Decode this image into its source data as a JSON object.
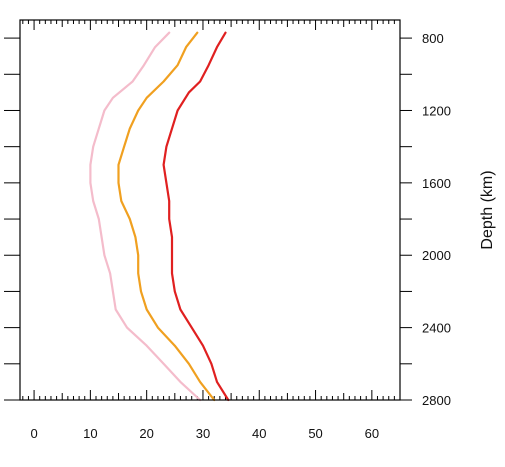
{
  "chart_data": {
    "type": "line",
    "xlim": [
      -2.5,
      65
    ],
    "x_ticks": [
      0,
      10,
      20,
      30,
      40,
      50,
      60
    ],
    "x_tick_labels": [
      "0",
      "10",
      "20",
      "30",
      "40",
      "50",
      "60"
    ],
    "ylim": [
      700,
      2800
    ],
    "y_ticks": [
      800,
      1200,
      1600,
      2000,
      2400,
      2800
    ],
    "y_tick_labels": [
      "800",
      "1200",
      "1600",
      "2000",
      "2400",
      "2800"
    ],
    "ylabel": "Depth (km)",
    "grid": false,
    "legend": "none",
    "series": [
      {
        "color": "#f4bccb",
        "depth": [
          770,
          850,
          950,
          1040,
          1130,
          1200,
          1300,
          1400,
          1500,
          1600,
          1700,
          1800,
          1900,
          2000,
          2100,
          2200,
          2300,
          2400,
          2500,
          2600,
          2700,
          2800
        ],
        "value": [
          24.0,
          21.5,
          19.5,
          17.5,
          14.0,
          12.5,
          11.5,
          10.5,
          10.0,
          10.0,
          10.5,
          11.5,
          12.0,
          12.5,
          13.5,
          14.0,
          14.5,
          16.5,
          20.0,
          23.0,
          26.0,
          29.5
        ]
      },
      {
        "color": "#f0a020",
        "depth": [
          770,
          850,
          950,
          1040,
          1130,
          1200,
          1300,
          1400,
          1500,
          1600,
          1700,
          1800,
          1900,
          2000,
          2100,
          2200,
          2300,
          2400,
          2500,
          2600,
          2700,
          2800
        ],
        "value": [
          29.0,
          27.0,
          25.5,
          23.0,
          20.0,
          18.5,
          17.0,
          16.0,
          15.0,
          15.0,
          15.5,
          17.0,
          18.0,
          18.5,
          18.5,
          19.0,
          20.0,
          22.0,
          25.0,
          27.5,
          29.5,
          32.0
        ]
      },
      {
        "color": "#e02020",
        "depth": [
          770,
          850,
          950,
          1040,
          1100,
          1200,
          1300,
          1400,
          1500,
          1600,
          1700,
          1800,
          1900,
          2000,
          2100,
          2200,
          2300,
          2400,
          2500,
          2600,
          2700,
          2800
        ],
        "value": [
          34.0,
          32.5,
          31.0,
          29.5,
          27.5,
          25.5,
          24.5,
          23.5,
          23.0,
          23.5,
          24.0,
          24.0,
          24.5,
          24.5,
          24.5,
          25.0,
          26.0,
          28.0,
          30.0,
          31.5,
          32.5,
          34.5
        ]
      }
    ]
  }
}
